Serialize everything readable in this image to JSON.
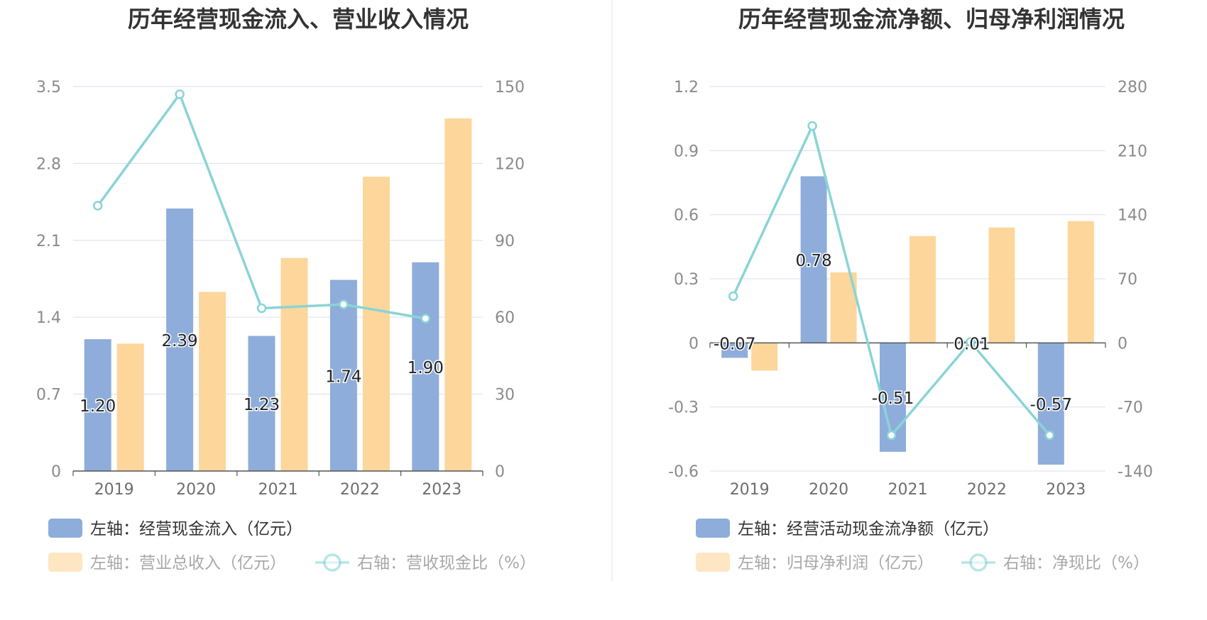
{
  "colors": {
    "bar_primary": "#8eadda",
    "bar_secondary": "#fdd69b",
    "line": "#8ad4d6",
    "grid": "#dfe3ef",
    "axis": "#555555",
    "divider": "#eeeeee"
  },
  "chart_data": [
    {
      "type": "bar",
      "title": "历年经营现金流入、营业收入情况",
      "categories": [
        "2019",
        "2020",
        "2021",
        "2022",
        "2023"
      ],
      "left_axis": {
        "ylim": [
          0,
          3.5
        ],
        "ticks": [
          "0",
          "0.7",
          "1.4",
          "2.1",
          "2.8",
          "3.5"
        ]
      },
      "right_axis": {
        "ylim": [
          0,
          150
        ],
        "ticks": [
          "0",
          "30",
          "60",
          "90",
          "120",
          "150"
        ]
      },
      "series": [
        {
          "name": "左轴：经营现金流入（亿元）",
          "kind": "bar",
          "axis": "left",
          "values": [
            1.2,
            2.39,
            1.23,
            1.74,
            1.9
          ],
          "labels": [
            "1.20",
            "2.39",
            "1.23",
            "1.74",
            "1.90"
          ]
        },
        {
          "name": "左轴：营业总收入（亿元）",
          "kind": "bar",
          "axis": "left",
          "values": [
            1.16,
            1.63,
            1.94,
            2.68,
            3.21
          ]
        },
        {
          "name": "右轴：营收现金比（%）",
          "kind": "line",
          "axis": "right",
          "values": [
            103.5,
            147,
            63.5,
            65,
            59.5
          ]
        }
      ],
      "legend_placement": "bottom",
      "grid": true
    },
    {
      "type": "bar",
      "title": "历年经营现金流净额、归母净利润情况",
      "categories": [
        "2019",
        "2020",
        "2021",
        "2022",
        "2023"
      ],
      "left_axis": {
        "ylim": [
          -0.6,
          1.2
        ],
        "ticks": [
          "-0.6",
          "-0.3",
          "0",
          "0.3",
          "0.6",
          "0.9",
          "1.2"
        ]
      },
      "right_axis": {
        "ylim": [
          -140,
          280
        ],
        "ticks": [
          "-140",
          "-70",
          "0",
          "70",
          "140",
          "210",
          "280"
        ]
      },
      "series": [
        {
          "name": "左轴：经营活动现金流净额（亿元）",
          "kind": "bar",
          "axis": "left",
          "values": [
            -0.07,
            0.78,
            -0.51,
            0.01,
            -0.57
          ],
          "labels": [
            "-0.07",
            "0.78",
            "-0.51",
            "0.01",
            "-0.57"
          ]
        },
        {
          "name": "左轴：归母净利润（亿元）",
          "kind": "bar",
          "axis": "left",
          "values": [
            -0.13,
            0.33,
            0.5,
            0.54,
            0.57
          ]
        },
        {
          "name": "右轴：净现比（%）",
          "kind": "line",
          "axis": "right",
          "values": [
            51,
            237,
            -101,
            1,
            -101
          ]
        }
      ],
      "legend_placement": "bottom",
      "grid": true
    }
  ]
}
